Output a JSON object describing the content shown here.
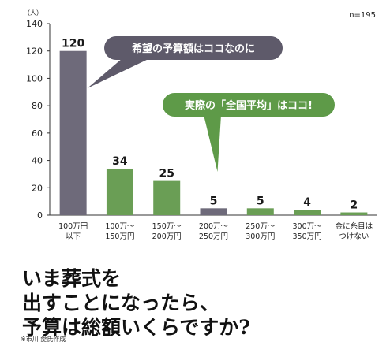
{
  "chart_data": {
    "type": "bar",
    "unit_label": "（人）",
    "note": "n=195",
    "ylim": [
      0,
      140
    ],
    "yticks": [
      0,
      20,
      40,
      60,
      80,
      100,
      120,
      140
    ],
    "categories": [
      [
        "100万円",
        "以下"
      ],
      [
        "100万〜",
        "150万円"
      ],
      [
        "150万〜",
        "200万円"
      ],
      [
        "200万〜",
        "250万円"
      ],
      [
        "250万〜",
        "300万円"
      ],
      [
        "300万〜",
        "350万円"
      ],
      [
        "金に糸目は",
        "つけない"
      ]
    ],
    "values": [
      120,
      34,
      25,
      5,
      5,
      4,
      2
    ],
    "data_labels": [
      "120",
      "34",
      "25",
      "5",
      "5",
      "4",
      "2"
    ],
    "bar_colors": [
      "#6e6a7a",
      "#6a9e55",
      "#6a9e55",
      "#6e6a7a",
      "#6a9e55",
      "#6a9e55",
      "#6a9e55"
    ],
    "grid": false,
    "callouts": [
      {
        "text": "希望の予算額はココなのに",
        "color": "#5e5a6a"
      },
      {
        "text": "実際の「全国平均」はココ!",
        "color": "#5e9a48"
      }
    ]
  },
  "headline": [
    "いま葬式を",
    "出すことになったら、",
    "予算は総額いくらですか?"
  ],
  "credit": "※市川 愛氏作成"
}
